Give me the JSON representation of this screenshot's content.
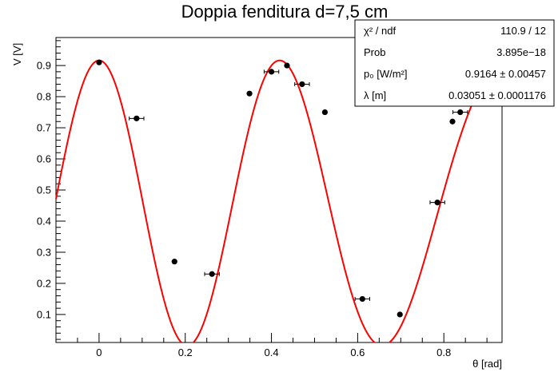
{
  "chart_data": {
    "type": "scatter",
    "title": "Doppia fenditura d=7,5 cm",
    "xlabel": "θ [rad]",
    "ylabel": "V [V]",
    "xlim": [
      -0.1,
      0.935
    ],
    "ylim": [
      0.01,
      0.99
    ],
    "grid": false,
    "x_ticks": [
      0,
      0.2,
      0.4,
      0.6,
      0.8
    ],
    "x_tick_labels": [
      "0",
      "0.2",
      "0.4",
      "0.6",
      "0.8"
    ],
    "y_ticks": [
      0.1,
      0.2,
      0.3,
      0.4,
      0.5,
      0.6,
      0.7,
      0.8,
      0.9
    ],
    "y_tick_labels": [
      "0.1",
      "0.2",
      "0.3",
      "0.4",
      "0.5",
      "0.6",
      "0.7",
      "0.8",
      "0.9"
    ],
    "marker_color": "#000000",
    "fit_color": "#ff0000",
    "series": [
      {
        "type": "points",
        "x": [
          0.0,
          0.087,
          0.175,
          0.262,
          0.349,
          0.4,
          0.436,
          0.471,
          0.524,
          0.611,
          0.698,
          0.785,
          0.82,
          0.838
        ],
        "y": [
          0.91,
          0.73,
          0.27,
          0.23,
          0.81,
          0.88,
          0.9,
          0.84,
          0.75,
          0.15,
          0.1,
          0.46,
          0.72,
          0.75
        ],
        "xerr": [
          0.0,
          0.017,
          0.0,
          0.017,
          0.0,
          0.017,
          0.0,
          0.017,
          0.0,
          0.017,
          0.0,
          0.017,
          0.0,
          0.017
        ]
      },
      {
        "type": "fit",
        "p0": 0.9164,
        "lambda": 0.03051,
        "d": 0.075
      }
    ],
    "stats_box": {
      "rows": [
        {
          "label": "χ² / ndf",
          "value": "110.9 / 12"
        },
        {
          "label": "Prob",
          "value": "3.895e−18"
        },
        {
          "label": "p₀ [W/m²]",
          "value": "0.9164 ± 0.00457"
        },
        {
          "label": "λ [m]",
          "value": "0.03051 ± 0.0001176"
        }
      ]
    }
  }
}
